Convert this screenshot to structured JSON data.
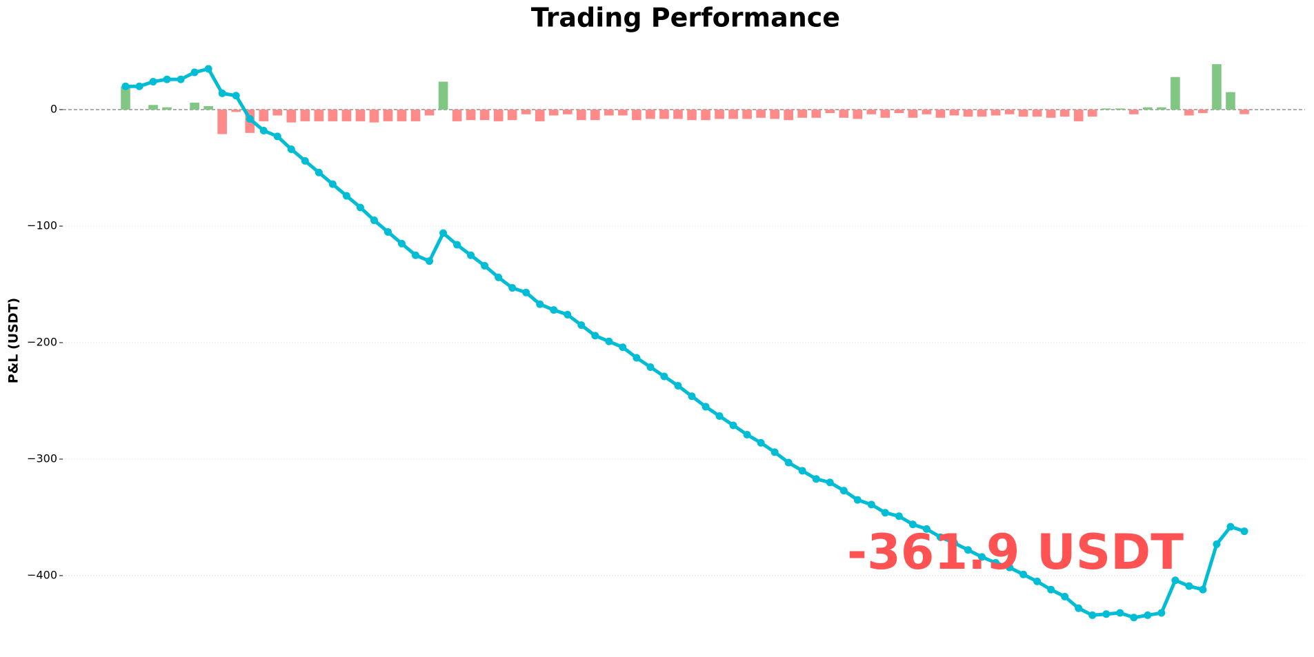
{
  "chart_data": {
    "type": "bar",
    "title": "Trading Performance",
    "y_label": "P&L (USDT)",
    "annotation": "-361.9 USDT",
    "annotation_color": "#ff5252",
    "ylim": [
      -445,
      58
    ],
    "yticks": [
      {
        "value": -400,
        "label": "−400"
      },
      {
        "value": -300,
        "label": "−300"
      },
      {
        "value": -200,
        "label": "−200"
      },
      {
        "value": -100,
        "label": "−100"
      },
      0
    ],
    "grid": true,
    "series": [
      {
        "type": "bar",
        "color": "#81c784",
        "negative_color": "#ff8a8a",
        "values": [
          20,
          0,
          4,
          2,
          0,
          6,
          3,
          -21,
          -2,
          -20,
          -10,
          -5,
          -11,
          -10,
          -10,
          -10,
          -10,
          -10,
          -11,
          -10,
          -10,
          -10,
          -5,
          24,
          -10,
          -9,
          -9,
          -10,
          -9,
          -4,
          -10,
          -5,
          -4,
          -9,
          -9,
          -5,
          -5,
          -9,
          -8,
          -8,
          -8,
          -9,
          -9,
          -8,
          -8,
          -8,
          -7,
          -8,
          -9,
          -7,
          -7,
          -3,
          -7,
          -8,
          -4,
          -7,
          -3,
          -7,
          -4,
          -7,
          -5,
          -6,
          -6,
          -5,
          -4,
          -6,
          -6,
          -7,
          -6,
          -10,
          -6,
          1,
          1,
          -4,
          2,
          2,
          28,
          -5,
          -3,
          39,
          15,
          -3.9
        ]
      },
      {
        "type": "line",
        "color": "#00bcd4",
        "values": [
          20,
          20,
          24,
          26,
          26,
          32,
          35,
          14,
          12,
          -8,
          -18,
          -23,
          -34,
          -44,
          -54,
          -64,
          -74,
          -84,
          -95,
          -105,
          -115,
          -125,
          -130,
          -106,
          -116,
          -125,
          -134,
          -144,
          -153,
          -157,
          -167,
          -172,
          -176,
          -185,
          -194,
          -199,
          -204,
          -213,
          -221,
          -229,
          -237,
          -246,
          -255,
          -263,
          -271,
          -279,
          -286,
          -294,
          -303,
          -310,
          -317,
          -320,
          -327,
          -335,
          -339,
          -346,
          -349,
          -356,
          -360,
          -367,
          -372,
          -378,
          -384,
          -389,
          -393,
          -399,
          -405,
          -412,
          -418,
          -428,
          -434,
          -433,
          -432,
          -436,
          -434,
          -432,
          -404,
          -409,
          -412,
          -373,
          -358,
          -361.9
        ]
      }
    ]
  }
}
